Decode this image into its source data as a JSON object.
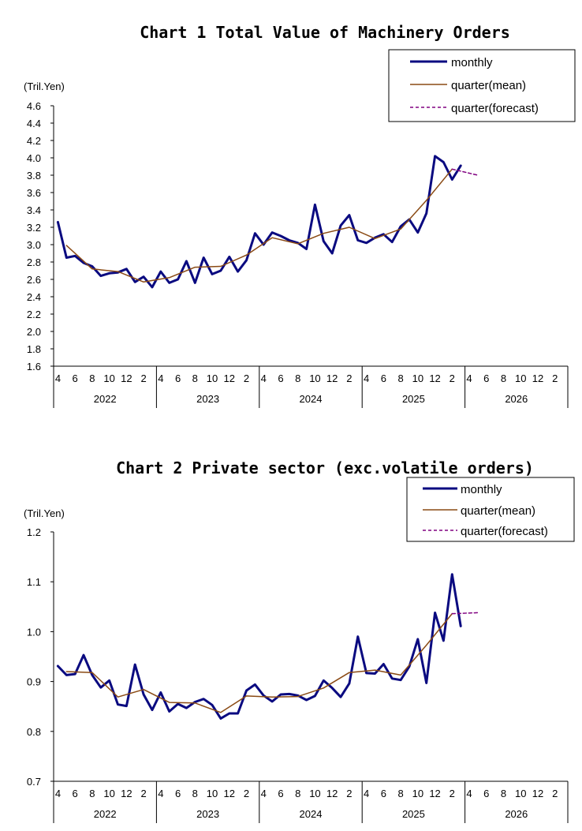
{
  "colors": {
    "monthly": "#0a0a80",
    "quarter_mean": "#8a4a14",
    "quarter_forecast": "#800080",
    "axis": "#000000"
  },
  "legend": {
    "monthly": "monthly",
    "quarter_mean": "quarter(mean)",
    "quarter_forecast": "quarter(forecast)"
  },
  "month_ticks": [
    "4",
    "6",
    "8",
    "10",
    "12",
    "2"
  ],
  "years": [
    "2022",
    "2023",
    "2024",
    "2025",
    "2026"
  ],
  "chart_data": [
    {
      "type": "line",
      "title": "Chart 1 Total Value of Machinery Orders",
      "unit": "(Tril.Yen)",
      "ylim": [
        1.6,
        4.6
      ],
      "yticks": [
        "1.6",
        "1.8",
        "2.0",
        "2.2",
        "2.4",
        "2.6",
        "2.8",
        "3.0",
        "3.2",
        "3.4",
        "3.6",
        "3.8",
        "4.0",
        "4.2",
        "4.4",
        "4.6"
      ],
      "x_start": "2022-04",
      "x_end": "2027-03",
      "series": [
        {
          "name": "monthly",
          "x": [
            "2022-04",
            "2022-05",
            "2022-06",
            "2022-07",
            "2022-08",
            "2022-09",
            "2022-10",
            "2022-11",
            "2022-12",
            "2023-01",
            "2023-02",
            "2023-03",
            "2023-04",
            "2023-05",
            "2023-06",
            "2023-07",
            "2023-08",
            "2023-09",
            "2023-10",
            "2023-11",
            "2023-12",
            "2024-01",
            "2024-02",
            "2024-03",
            "2024-04",
            "2024-05",
            "2024-06",
            "2024-07",
            "2024-08",
            "2024-09",
            "2024-10",
            "2024-11",
            "2024-12",
            "2025-01",
            "2025-02",
            "2025-03",
            "2025-04",
            "2025-05",
            "2025-06",
            "2025-07",
            "2025-08",
            "2025-09",
            "2025-10",
            "2025-11",
            "2025-12",
            "2026-01",
            "2026-02",
            "2026-03"
          ],
          "y": [
            3.26,
            2.85,
            2.87,
            2.79,
            2.75,
            2.64,
            2.67,
            2.68,
            2.72,
            2.57,
            2.63,
            2.51,
            2.69,
            2.56,
            2.6,
            2.81,
            2.56,
            2.85,
            2.66,
            2.7,
            2.86,
            2.69,
            2.82,
            3.13,
            3.0,
            3.14,
            3.1,
            3.05,
            3.02,
            2.95,
            3.46,
            3.04,
            2.9,
            3.22,
            3.34,
            3.05,
            3.02,
            3.08,
            3.12,
            3.03,
            3.21,
            3.29,
            3.14,
            3.36,
            4.02,
            3.95,
            3.75,
            3.91
          ]
        },
        {
          "name": "quarter(mean)",
          "x": [
            "2022-05",
            "2022-08",
            "2022-11",
            "2023-02",
            "2023-05",
            "2023-08",
            "2023-11",
            "2024-02",
            "2024-05",
            "2024-08",
            "2024-11",
            "2025-02",
            "2025-05",
            "2025-08",
            "2025-11",
            "2026-02"
          ],
          "y": [
            2.99,
            2.72,
            2.69,
            2.57,
            2.62,
            2.74,
            2.75,
            2.88,
            3.08,
            3.01,
            3.13,
            3.2,
            3.07,
            3.18,
            3.51,
            3.87
          ]
        },
        {
          "name": "quarter(forecast)",
          "x": [
            "2026-02",
            "2026-05"
          ],
          "y": [
            3.87,
            3.8
          ]
        }
      ]
    },
    {
      "type": "line",
      "title": "Chart 2 Private sector (exc.volatile orders)",
      "unit": "(Tril.Yen)",
      "ylim": [
        0.7,
        1.2
      ],
      "yticks": [
        "0.7",
        "0.8",
        "0.9",
        "1.0",
        "1.1",
        "1.2"
      ],
      "x_start": "2022-04",
      "x_end": "2027-03",
      "series": [
        {
          "name": "monthly",
          "x": [
            "2022-04",
            "2022-05",
            "2022-06",
            "2022-07",
            "2022-08",
            "2022-09",
            "2022-10",
            "2022-11",
            "2022-12",
            "2023-01",
            "2023-02",
            "2023-03",
            "2023-04",
            "2023-05",
            "2023-06",
            "2023-07",
            "2023-08",
            "2023-09",
            "2023-10",
            "2023-11",
            "2023-12",
            "2024-01",
            "2024-02",
            "2024-03",
            "2024-04",
            "2024-05",
            "2024-06",
            "2024-07",
            "2024-08",
            "2024-09",
            "2024-10",
            "2024-11",
            "2024-12",
            "2025-01",
            "2025-02",
            "2025-03",
            "2025-04",
            "2025-05",
            "2025-06",
            "2025-07",
            "2025-08",
            "2025-09",
            "2025-10",
            "2025-11",
            "2025-12",
            "2026-01",
            "2026-02",
            "2026-03"
          ],
          "y": [
            0.931,
            0.913,
            0.915,
            0.953,
            0.913,
            0.888,
            0.902,
            0.854,
            0.851,
            0.934,
            0.874,
            0.843,
            0.878,
            0.84,
            0.855,
            0.847,
            0.859,
            0.865,
            0.853,
            0.826,
            0.836,
            0.836,
            0.882,
            0.894,
            0.872,
            0.86,
            0.874,
            0.875,
            0.872,
            0.863,
            0.871,
            0.902,
            0.887,
            0.869,
            0.896,
            0.99,
            0.917,
            0.916,
            0.935,
            0.906,
            0.903,
            0.93,
            0.985,
            0.897,
            1.038,
            0.982,
            1.115,
            1.011
          ]
        },
        {
          "name": "quarter(mean)",
          "x": [
            "2022-05",
            "2022-08",
            "2022-11",
            "2023-02",
            "2023-05",
            "2023-08",
            "2023-11",
            "2024-02",
            "2024-05",
            "2024-08",
            "2024-11",
            "2025-02",
            "2025-05",
            "2025-08",
            "2025-11",
            "2026-02"
          ],
          "y": [
            0.92,
            0.918,
            0.869,
            0.884,
            0.858,
            0.857,
            0.838,
            0.871,
            0.869,
            0.87,
            0.887,
            0.918,
            0.923,
            0.913,
            0.973,
            1.036
          ]
        },
        {
          "name": "quarter(forecast)",
          "x": [
            "2026-02",
            "2026-05"
          ],
          "y": [
            1.036,
            1.038
          ]
        }
      ]
    }
  ]
}
